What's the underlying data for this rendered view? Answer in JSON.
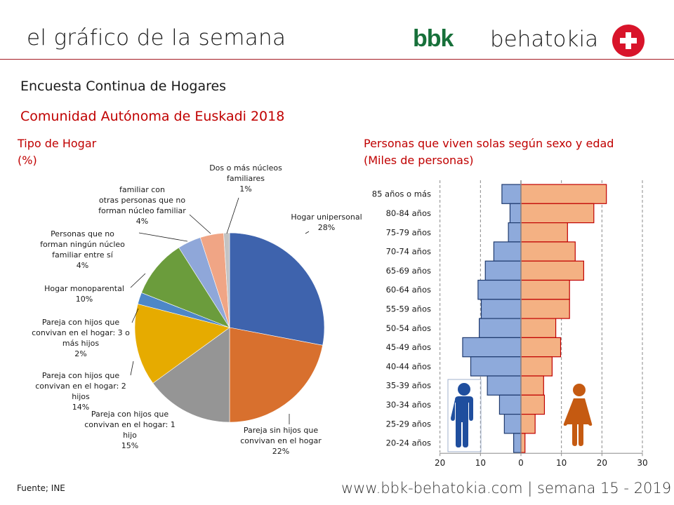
{
  "header": {
    "title": "el gráfico de la semana",
    "logo_bbk": "bbk",
    "logo_behatokia": "behatokia"
  },
  "subtitle": "Encuesta Continua de Hogares",
  "region": "Comunidad Autónoma de Euskadi 2018",
  "footer": {
    "source": "Fuente; INE",
    "url": "www.bbk-behatokia.com | semana 15 - 2019"
  },
  "chart_data": [
    {
      "type": "pie",
      "title": "Tipo de Hogar",
      "subtitle": "(%)",
      "slices": [
        {
          "label_lines": [
            "Hogar unipersonal",
            "28%"
          ],
          "label": "Hogar unipersonal",
          "value": 28,
          "color": "#3e63ad"
        },
        {
          "label_lines": [
            "Pareja sin hijos que",
            "convivan en el hogar",
            "22%"
          ],
          "label": "Pareja sin hijos que convivan en el hogar",
          "value": 22,
          "color": "#d8702e"
        },
        {
          "label_lines": [
            "Pareja con hijos que",
            "convivan en el hogar: 1",
            "hijo",
            "15%"
          ],
          "label": "Pareja con hijos que convivan en el hogar: 1 hijo",
          "value": 15,
          "color": "#959595"
        },
        {
          "label_lines": [
            "Pareja con hijos que",
            "convivan en el hogar: 2",
            "hijos",
            "14%"
          ],
          "label": "Pareja con hijos que convivan en el hogar: 2 hijos",
          "value": 14,
          "color": "#e6ab00"
        },
        {
          "label_lines": [
            "Pareja con hijos que",
            "convivan en el hogar: 3 o",
            "más hijos",
            "2%"
          ],
          "label": "Pareja con hijos que convivan en el hogar: 3 o más hijos",
          "value": 2,
          "color": "#4d87c7"
        },
        {
          "label_lines": [
            "Hogar monoparental",
            "10%"
          ],
          "label": "Hogar monoparental",
          "value": 10,
          "color": "#6b9c3c"
        },
        {
          "label_lines": [
            "Personas que no",
            "forman ningún núcleo",
            "familiar entre sí",
            "4%"
          ],
          "label": "Personas que no forman ningún núcleo familiar entre sí",
          "value": 4,
          "color": "#8fa7d9"
        },
        {
          "label_lines": [
            "familiar con",
            "otras personas que no",
            "forman núcleo familiar",
            "4%"
          ],
          "label": "familiar con otras personas que no forman núcleo familiar",
          "value": 4,
          "color": "#f0a585"
        },
        {
          "label_lines": [
            "Dos o más núcleos",
            "familiares",
            "1%"
          ],
          "label": "Dos o más núcleos familiares",
          "value": 1,
          "color": "#c3c3c3"
        }
      ]
    },
    {
      "type": "bar",
      "orientation": "horizontal-pyramid",
      "title": "Personas que viven solas según sexo y edad",
      "subtitle": "(Miles de personas)",
      "categories": [
        "85 años o más",
        "80-84 años",
        "75-79 años",
        "70-74 años",
        "65-69 años",
        "60-64 años",
        "55-59 años",
        "50-54 años",
        "45-49 años",
        "40-44 años",
        "35-39 años",
        "30-34 años",
        "25-29 años",
        "20-24 años"
      ],
      "series": [
        {
          "name": "Hombres",
          "color": "#8eaadb",
          "border": "#1f3a6e",
          "values": [
            4.7,
            2.7,
            3.1,
            6.7,
            8.8,
            10.6,
            9.8,
            10.3,
            14.4,
            12.4,
            8.3,
            5.3,
            4.1,
            1.8
          ]
        },
        {
          "name": "Mujeres",
          "color": "#f4b183",
          "border": "#c00000",
          "values": [
            21.1,
            18.0,
            11.5,
            13.4,
            15.5,
            12.0,
            12.0,
            8.6,
            9.8,
            7.7,
            5.6,
            5.8,
            3.5,
            1.0
          ]
        }
      ],
      "xticks": [
        "20",
        "10",
        "0",
        "10",
        "20",
        "30"
      ],
      "xlim": [
        -20,
        30
      ],
      "grid": "vertical dashed"
    }
  ]
}
